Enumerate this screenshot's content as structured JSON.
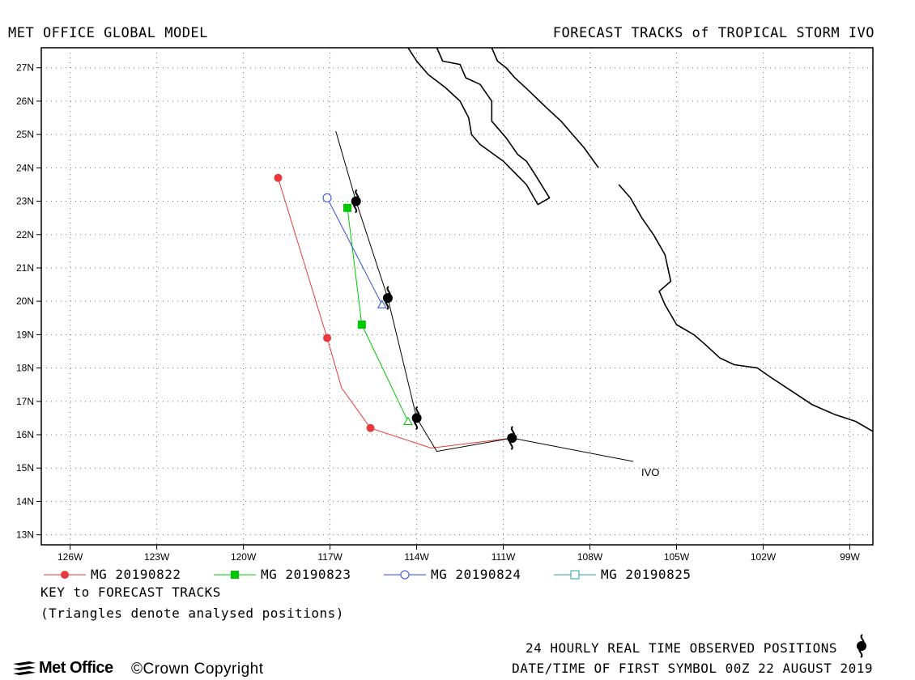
{
  "header": {
    "left_title": "MET OFFICE GLOBAL MODEL",
    "right_title": "FORECAST TRACKS of TROPICAL STORM IVO"
  },
  "map": {
    "lon_range": [
      -127,
      -98.2
    ],
    "lat_range": [
      12.7,
      27.6
    ],
    "lon_ticks": [
      -126,
      -123,
      -120,
      -117,
      -114,
      -111,
      -108,
      -105,
      -102,
      -99
    ],
    "lon_tick_labels": [
      "126W",
      "123W",
      "120W",
      "117W",
      "114W",
      "111W",
      "108W",
      "105W",
      "102W",
      "99W"
    ],
    "lat_ticks": [
      13,
      14,
      15,
      16,
      17,
      18,
      19,
      20,
      21,
      22,
      23,
      24,
      25,
      26,
      27
    ],
    "lat_tick_labels": [
      "13N",
      "14N",
      "15N",
      "16N",
      "17N",
      "18N",
      "19N",
      "20N",
      "21N",
      "22N",
      "23N",
      "24N",
      "25N",
      "26N",
      "27N"
    ],
    "grid": "dotted",
    "storm_label": "IVO",
    "coastlines": [
      [
        [
          -113.3,
          27.6
        ],
        [
          -113.1,
          27.2
        ],
        [
          -112.5,
          27.1
        ],
        [
          -112.3,
          26.7
        ],
        [
          -111.8,
          26.5
        ],
        [
          -111.4,
          26.0
        ],
        [
          -111.4,
          25.4
        ],
        [
          -110.9,
          24.9
        ],
        [
          -110.5,
          24.4
        ],
        [
          -110.2,
          24.2
        ],
        [
          -109.9,
          23.8
        ],
        [
          -109.4,
          23.1
        ],
        [
          -109.8,
          22.9
        ],
        [
          -110.2,
          23.5
        ],
        [
          -111.0,
          24.2
        ],
        [
          -111.8,
          24.7
        ],
        [
          -112.1,
          25.0
        ],
        [
          -112.2,
          25.5
        ],
        [
          -112.5,
          26.0
        ],
        [
          -113.0,
          26.4
        ],
        [
          -113.6,
          26.8
        ],
        [
          -114.0,
          27.2
        ],
        [
          -114.3,
          27.6
        ]
      ],
      [
        [
          -111.4,
          27.6
        ],
        [
          -111.2,
          27.2
        ],
        [
          -110.9,
          27.0
        ],
        [
          -110.6,
          26.7
        ],
        [
          -110.1,
          26.3
        ],
        [
          -109.5,
          25.8
        ],
        [
          -109.0,
          25.4
        ],
        [
          -108.6,
          25.0
        ],
        [
          -108.2,
          24.6
        ],
        [
          -107.7,
          24.0
        ]
      ],
      [
        [
          -107.0,
          23.5
        ],
        [
          -106.6,
          23.1
        ],
        [
          -106.2,
          22.5
        ],
        [
          -105.8,
          22.0
        ],
        [
          -105.4,
          21.4
        ],
        [
          -105.3,
          21.0
        ],
        [
          -105.2,
          20.6
        ],
        [
          -105.6,
          20.3
        ],
        [
          -105.4,
          19.9
        ],
        [
          -105.0,
          19.3
        ],
        [
          -104.4,
          19.0
        ],
        [
          -104.0,
          18.7
        ],
        [
          -103.5,
          18.3
        ],
        [
          -103.0,
          18.1
        ],
        [
          -102.2,
          18.0
        ],
        [
          -101.7,
          17.7
        ],
        [
          -101.0,
          17.3
        ],
        [
          -100.3,
          16.9
        ],
        [
          -99.5,
          16.6
        ],
        [
          -98.8,
          16.4
        ],
        [
          -98.2,
          16.1
        ]
      ]
    ]
  },
  "tracks": [
    {
      "name": "MG 20190822",
      "color": "#e83a3a",
      "marker": "filled-circle",
      "points": [
        [
          -118.8,
          23.7
        ],
        [
          -117.1,
          18.9
        ],
        [
          -116.6,
          17.4
        ],
        [
          -115.6,
          16.2
        ],
        [
          -113.5,
          15.6
        ],
        [
          -110.7,
          15.9
        ]
      ],
      "symbols": [
        [
          -118.8,
          23.7
        ],
        [
          -117.1,
          18.9
        ],
        [
          -115.6,
          16.2
        ]
      ]
    },
    {
      "name": "MG 20190823",
      "color": "#00c800",
      "marker": "filled-square",
      "points": [
        [
          -116.4,
          22.8
        ],
        [
          -115.9,
          19.3
        ],
        [
          -114.3,
          16.4
        ]
      ],
      "symbols": [
        [
          -116.4,
          22.8
        ],
        [
          -115.9,
          19.3
        ]
      ],
      "analysed": [
        -114.3,
        16.4
      ]
    },
    {
      "name": "MG 20190824",
      "color": "#2a4dd8",
      "marker": "open-circle",
      "points": [
        [
          -117.1,
          23.1
        ],
        [
          -115.2,
          19.9
        ]
      ],
      "symbols": [
        [
          -117.1,
          23.1
        ]
      ],
      "analysed": [
        -115.2,
        19.9
      ]
    },
    {
      "name": "MG 20190825",
      "color": "#2aa6a6",
      "marker": "open-square",
      "points": [],
      "symbols": []
    }
  ],
  "observed": {
    "track": [
      [
        -106.5,
        15.2
      ],
      [
        -110.7,
        15.9
      ],
      [
        -113.3,
        15.5
      ],
      [
        -114.0,
        16.5
      ],
      [
        -115.0,
        20.1
      ],
      [
        -116.1,
        23.0
      ],
      [
        -116.8,
        25.1
      ]
    ],
    "storm_positions": [
      [
        -110.7,
        15.9
      ],
      [
        -114.0,
        16.5
      ],
      [
        -115.0,
        20.1
      ],
      [
        -116.1,
        23.0
      ]
    ]
  },
  "key": {
    "title": "KEY to FORECAST TRACKS",
    "note": "(Triangles denote analysed positions)"
  },
  "footer": {
    "observed_label": "24 HOURLY REAL TIME OBSERVED POSITIONS",
    "date_label": "DATE/TIME OF FIRST SYMBOL 00Z 22 AUGUST 2019",
    "logo_text": "Met Office",
    "copyright": "©Crown Copyright"
  }
}
